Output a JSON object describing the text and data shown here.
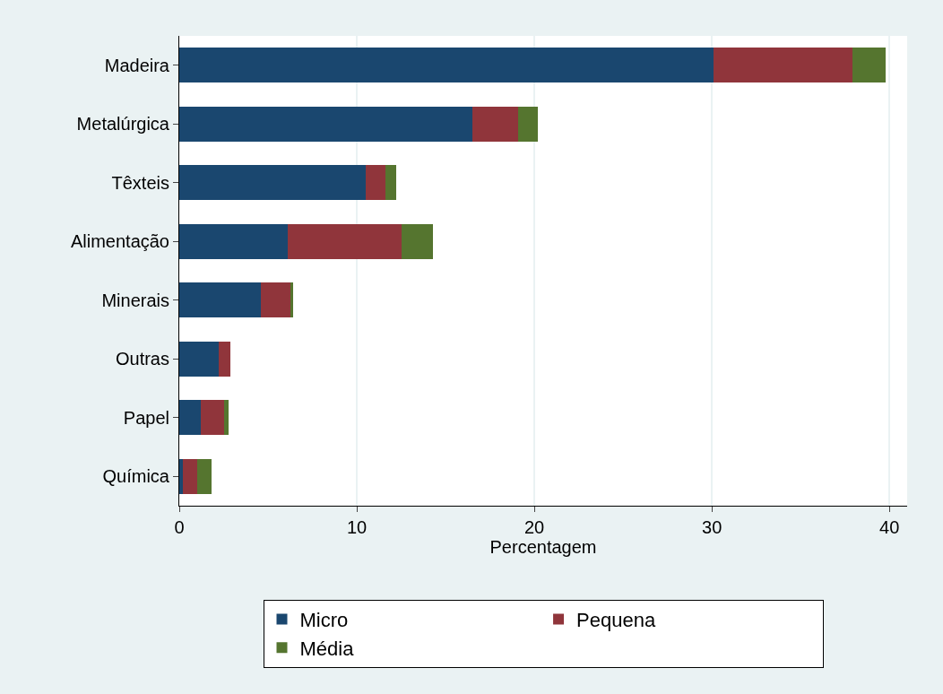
{
  "chart_data": {
    "type": "bar",
    "orientation": "horizontal",
    "stacked": true,
    "categories": [
      "Madeira",
      "Metalúrgica",
      "Têxteis",
      "Alimentação",
      "Minerais",
      "Outras",
      "Papel",
      "Química"
    ],
    "series": [
      {
        "name": "Micro",
        "color": "#1a476f",
        "values": [
          30.1,
          16.5,
          10.5,
          6.1,
          4.6,
          2.2,
          1.2,
          0.2
        ]
      },
      {
        "name": "Pequena",
        "color": "#90353b",
        "values": [
          7.8,
          2.6,
          1.1,
          6.4,
          1.7,
          0.7,
          1.3,
          0.8
        ]
      },
      {
        "name": "Média",
        "color": "#55752f",
        "values": [
          1.9,
          1.1,
          0.6,
          1.8,
          0.1,
          0,
          0.3,
          0.8
        ]
      }
    ],
    "xlabel": "Percentagem",
    "xlim": [
      0,
      41
    ],
    "xticks": [
      0,
      10,
      20,
      30,
      40
    ],
    "grid": "x",
    "legend": "bottom"
  }
}
